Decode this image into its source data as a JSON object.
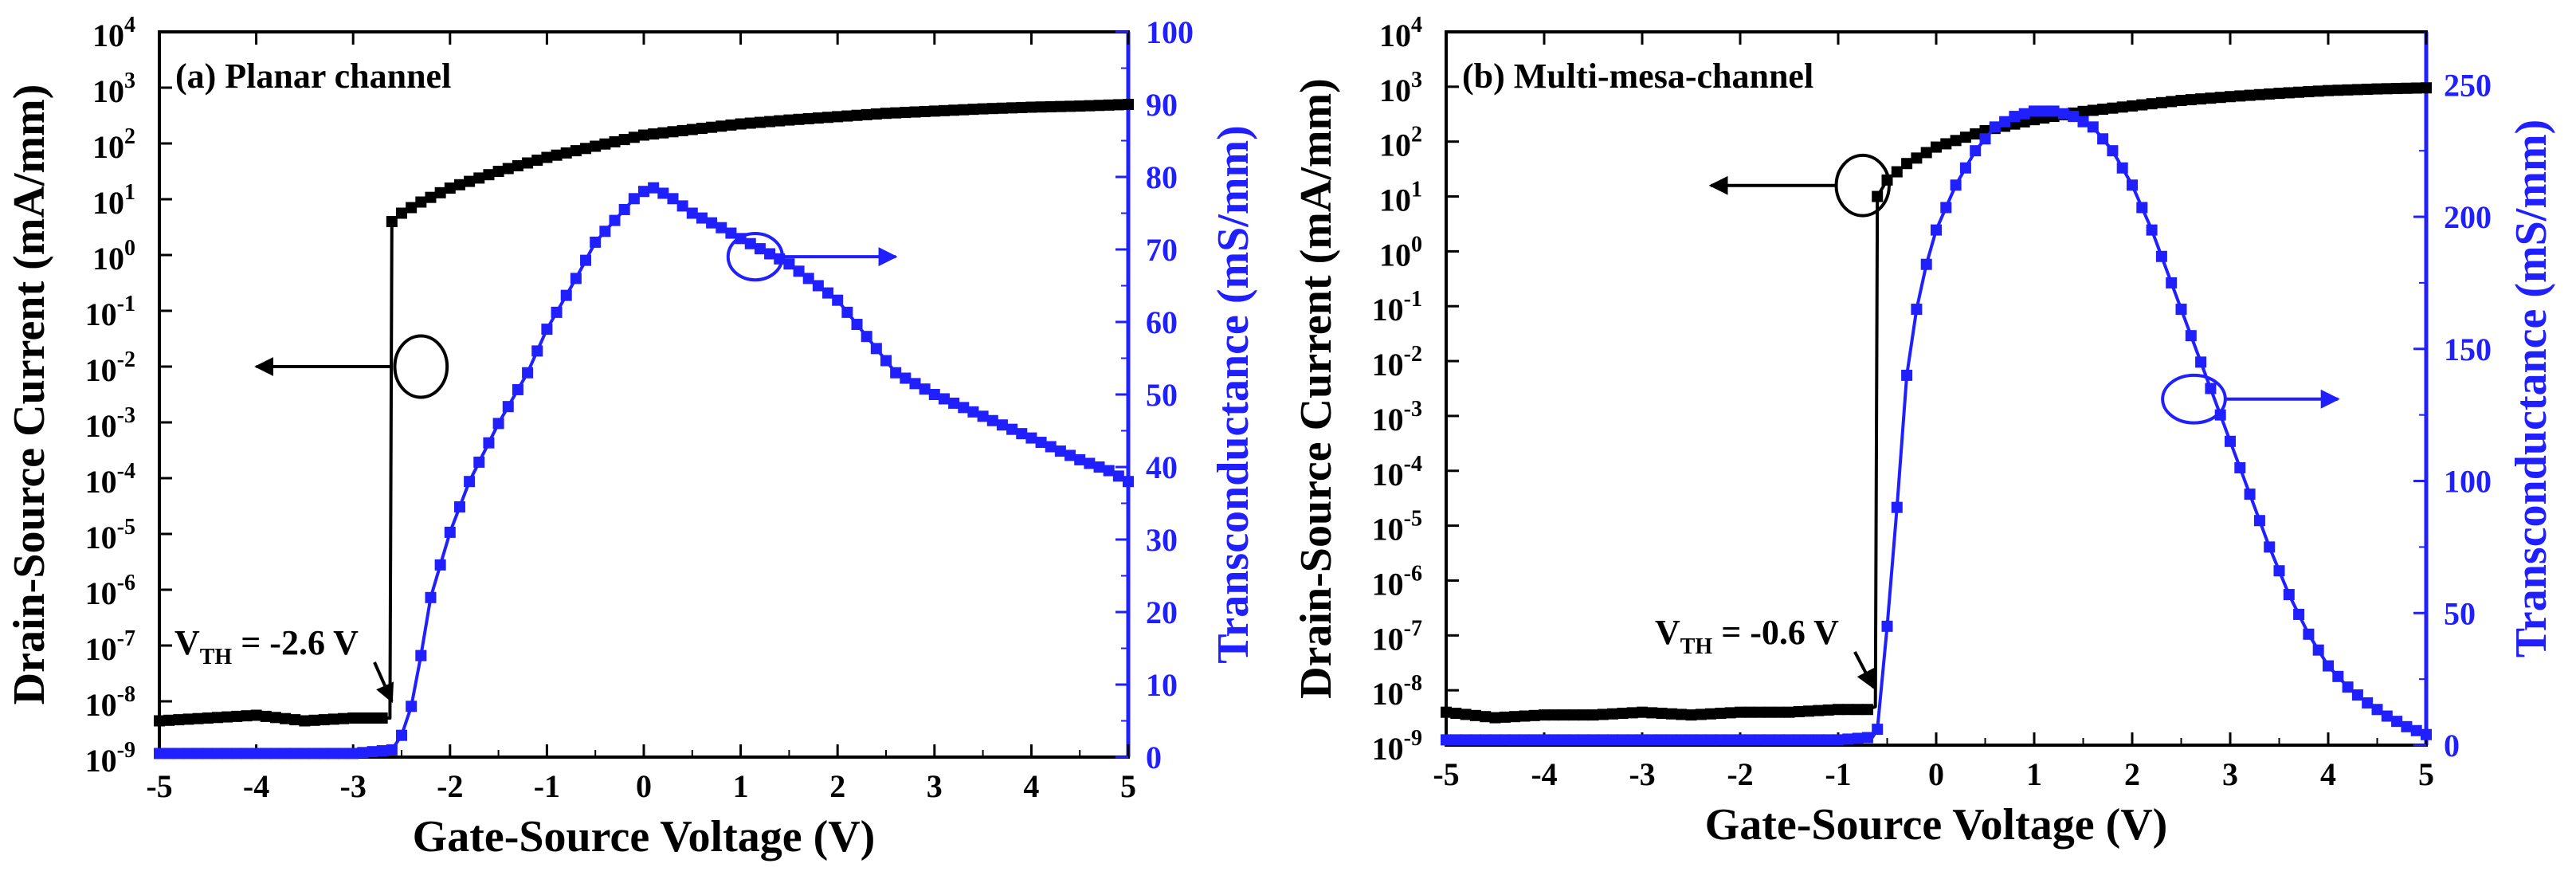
{
  "colors": {
    "left_axis": "#000000",
    "right_axis": "#1f1fff"
  },
  "chart_data": [
    {
      "type": "line",
      "panel": "a",
      "title": "(a)  Planar channel",
      "xlabel": "Gate-Source Voltage (V)",
      "ylabel_left": "Drain-Source Current (mA/mm)",
      "ylabel_right": "Transconductance (mS/mm)",
      "xlim": [
        -5,
        5
      ],
      "x_ticks": [
        -5,
        -4,
        -3,
        -2,
        -1,
        0,
        1,
        2,
        3,
        4,
        5
      ],
      "ylim_left_log10": [
        -9,
        4
      ],
      "y_left_ticks": [
        {
          "exp": 4,
          "label": "10",
          "sup": "4"
        },
        {
          "exp": 3,
          "label": "10",
          "sup": "3"
        },
        {
          "exp": 2,
          "label": "10",
          "sup": "2"
        },
        {
          "exp": 1,
          "label": "10",
          "sup": "1"
        },
        {
          "exp": 0,
          "label": "10",
          "sup": "0"
        },
        {
          "exp": -1,
          "label": "10",
          "sup": "-1"
        },
        {
          "exp": -2,
          "label": "10",
          "sup": "-2"
        },
        {
          "exp": -3,
          "label": "10",
          "sup": "-3"
        },
        {
          "exp": -4,
          "label": "10",
          "sup": "-4"
        },
        {
          "exp": -5,
          "label": "10",
          "sup": "-5"
        },
        {
          "exp": -6,
          "label": "10",
          "sup": "-6"
        },
        {
          "exp": -7,
          "label": "10",
          "sup": "-7"
        },
        {
          "exp": -8,
          "label": "10",
          "sup": "-8"
        },
        {
          "exp": -9,
          "label": "10",
          "sup": "-9"
        }
      ],
      "ylim_right": [
        0,
        100
      ],
      "y_right_ticks": [
        0,
        10,
        20,
        30,
        40,
        50,
        60,
        70,
        80,
        90,
        100
      ],
      "vth_label": "V",
      "vth_sub": "TH",
      "vth_value": " = -2.6 V",
      "vth_v": -2.6,
      "series": [
        {
          "name": "Drain-Source Current",
          "axis": "left",
          "color": "#000000",
          "points": [
            [
              -5,
              -8.35
            ],
            [
              -4.5,
              -8.3
            ],
            [
              -4,
              -8.25
            ],
            [
              -3.5,
              -8.35
            ],
            [
              -3,
              -8.3
            ],
            [
              -2.75,
              -8.3
            ],
            [
              -2.62,
              -8.3
            ],
            [
              -2.6,
              0.6
            ],
            [
              -2.5,
              0.75
            ],
            [
              -2.3,
              0.95
            ],
            [
              -2,
              1.2
            ],
            [
              -1.5,
              1.5
            ],
            [
              -1,
              1.75
            ],
            [
              -0.5,
              1.95
            ],
            [
              0,
              2.15
            ],
            [
              0.5,
              2.25
            ],
            [
              1,
              2.35
            ],
            [
              1.5,
              2.42
            ],
            [
              2,
              2.48
            ],
            [
              2.5,
              2.54
            ],
            [
              3,
              2.58
            ],
            [
              3.5,
              2.62
            ],
            [
              4,
              2.65
            ],
            [
              4.5,
              2.67
            ],
            [
              5,
              2.7
            ]
          ]
        },
        {
          "name": "Transconductance",
          "axis": "right",
          "color": "#1f1fff",
          "points": [
            [
              -5,
              0.5
            ],
            [
              -3,
              0.5
            ],
            [
              -2.6,
              1
            ],
            [
              -2.5,
              3
            ],
            [
              -2.4,
              7
            ],
            [
              -2.3,
              14
            ],
            [
              -2.2,
              22
            ],
            [
              -2,
              31
            ],
            [
              -1.8,
              38
            ],
            [
              -1.5,
              46
            ],
            [
              -1.2,
              53
            ],
            [
              -1,
              59
            ],
            [
              -0.7,
              66
            ],
            [
              -0.5,
              71
            ],
            [
              -0.3,
              74
            ],
            [
              -0.1,
              77
            ],
            [
              0,
              78
            ],
            [
              0.1,
              78.5
            ],
            [
              0.3,
              77
            ],
            [
              0.5,
              75
            ],
            [
              0.8,
              73
            ],
            [
              1,
              71.5
            ],
            [
              1.5,
              68
            ],
            [
              2,
              63
            ],
            [
              2.3,
              58
            ],
            [
              2.6,
              53
            ],
            [
              3,
              50
            ],
            [
              3.5,
              47
            ],
            [
              4,
              44
            ],
            [
              4.5,
              41
            ],
            [
              4.8,
              39.5
            ],
            [
              5,
              38
            ]
          ]
        }
      ],
      "annotations": [
        {
          "ellipse": {
            "cx": -2.3,
            "cy": -2,
            "rx": 0.27,
            "ry": 0.55,
            "axis": "left"
          },
          "arrow": {
            "x1": -2.6,
            "y1": -2,
            "x2": -4.0,
            "y2": -2,
            "axis": "left"
          }
        },
        {
          "ellipse": {
            "cx": 1.15,
            "cy": 69,
            "rx": 0.28,
            "ry": 3.2,
            "axis": "right"
          },
          "arrow": {
            "x1": 1.43,
            "y1": 69,
            "x2": 2.6,
            "y2": 69,
            "axis": "right"
          }
        },
        {
          "vth_arrow": {
            "x1": -2.78,
            "y1": -7.3,
            "x2": -2.6,
            "y2": -8.0,
            "axis": "left"
          }
        }
      ]
    },
    {
      "type": "line",
      "panel": "b",
      "title": "(b)  Multi-mesa-channel",
      "xlabel": "Gate-Source Voltage (V)",
      "ylabel_left": "Drain-Source Current (mA/mm)",
      "ylabel_right": "Transconductance (mS/mm)",
      "xlim": [
        -5,
        5
      ],
      "x_ticks": [
        -5,
        -4,
        -3,
        -2,
        -1,
        0,
        1,
        2,
        3,
        4,
        5
      ],
      "ylim_left_log10": [
        -9,
        4
      ],
      "y_left_ticks": [
        {
          "exp": 4,
          "label": "10",
          "sup": "4"
        },
        {
          "exp": 3,
          "label": "10",
          "sup": "3"
        },
        {
          "exp": 2,
          "label": "10",
          "sup": "2"
        },
        {
          "exp": 1,
          "label": "10",
          "sup": "1"
        },
        {
          "exp": 0,
          "label": "10",
          "sup": "0"
        },
        {
          "exp": -1,
          "label": "10",
          "sup": "-1"
        },
        {
          "exp": -2,
          "label": "10",
          "sup": "-2"
        },
        {
          "exp": -3,
          "label": "10",
          "sup": "-3"
        },
        {
          "exp": -4,
          "label": "10",
          "sup": "-4"
        },
        {
          "exp": -5,
          "label": "10",
          "sup": "-5"
        },
        {
          "exp": -6,
          "label": "10",
          "sup": "-6"
        },
        {
          "exp": -7,
          "label": "10",
          "sup": "-7"
        },
        {
          "exp": -8,
          "label": "10",
          "sup": "-8"
        },
        {
          "exp": -9,
          "label": "10",
          "sup": "-9"
        }
      ],
      "ylim_right": [
        0,
        270
      ],
      "y_right_ticks": [
        0,
        50,
        100,
        150,
        200,
        250
      ],
      "vth_label": "V",
      "vth_sub": "TH",
      "vth_value": " = -0.6 V",
      "vth_v": -0.6,
      "series": [
        {
          "name": "Drain-Source Current",
          "axis": "left",
          "color": "#000000",
          "points": [
            [
              -5,
              -8.4
            ],
            [
              -4.5,
              -8.5
            ],
            [
              -4,
              -8.45
            ],
            [
              -3.5,
              -8.45
            ],
            [
              -3,
              -8.4
            ],
            [
              -2.5,
              -8.45
            ],
            [
              -2,
              -8.4
            ],
            [
              -1.5,
              -8.4
            ],
            [
              -1,
              -8.35
            ],
            [
              -0.7,
              -8.35
            ],
            [
              -0.62,
              -8.3
            ],
            [
              -0.6,
              1.0
            ],
            [
              -0.5,
              1.3
            ],
            [
              -0.3,
              1.6
            ],
            [
              0,
              1.9
            ],
            [
              0.5,
              2.2
            ],
            [
              1,
              2.4
            ],
            [
              1.5,
              2.55
            ],
            [
              2,
              2.65
            ],
            [
              2.5,
              2.75
            ],
            [
              3,
              2.82
            ],
            [
              3.5,
              2.88
            ],
            [
              4,
              2.93
            ],
            [
              4.5,
              2.96
            ],
            [
              5,
              2.98
            ]
          ]
        },
        {
          "name": "Transconductance",
          "axis": "right",
          "color": "#1f1fff",
          "points": [
            [
              -5,
              2
            ],
            [
              -1,
              2
            ],
            [
              -0.65,
              3
            ],
            [
              -0.6,
              6
            ],
            [
              -0.5,
              45
            ],
            [
              -0.4,
              90
            ],
            [
              -0.3,
              140
            ],
            [
              -0.2,
              165
            ],
            [
              -0.1,
              182
            ],
            [
              0,
              195
            ],
            [
              0.2,
              212
            ],
            [
              0.4,
              225
            ],
            [
              0.6,
              234
            ],
            [
              0.8,
              238
            ],
            [
              1,
              240
            ],
            [
              1.2,
              240
            ],
            [
              1.4,
              238
            ],
            [
              1.6,
              234
            ],
            [
              1.8,
              225
            ],
            [
              2,
              212
            ],
            [
              2.2,
              195
            ],
            [
              2.4,
              175
            ],
            [
              2.6,
              155
            ],
            [
              2.8,
              135
            ],
            [
              3,
              115
            ],
            [
              3.2,
              95
            ],
            [
              3.4,
              75
            ],
            [
              3.6,
              57
            ],
            [
              3.8,
              42
            ],
            [
              4,
              30
            ],
            [
              4.2,
              22
            ],
            [
              4.4,
              16
            ],
            [
              4.6,
              11
            ],
            [
              4.8,
              7
            ],
            [
              5,
              4
            ]
          ]
        }
      ],
      "annotations": [
        {
          "ellipse": {
            "cx": -0.75,
            "cy": 1.2,
            "rx": 0.27,
            "ry": 0.55,
            "axis": "left"
          },
          "arrow": {
            "x1": -1.02,
            "y1": 1.2,
            "x2": -2.3,
            "y2": 1.2,
            "axis": "left"
          }
        },
        {
          "ellipse": {
            "cx": 2.63,
            "cy": 131,
            "rx": 0.32,
            "ry": 9,
            "axis": "right"
          },
          "arrow": {
            "x1": 2.95,
            "y1": 131,
            "x2": 4.1,
            "y2": 131,
            "axis": "right"
          }
        },
        {
          "vth_arrow": {
            "x1": -0.83,
            "y1": -7.3,
            "x2": -0.64,
            "y2": -7.95,
            "axis": "left"
          }
        }
      ]
    }
  ]
}
